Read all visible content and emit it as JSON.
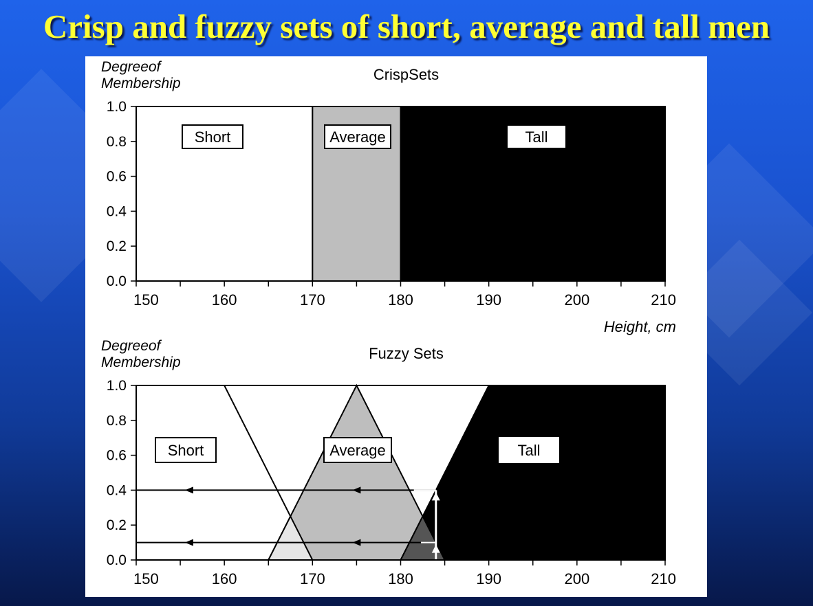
{
  "slide": {
    "title": "Crisp and fuzzy sets of short, average and tall men"
  },
  "colors": {
    "short": "#ffffff",
    "average": "#bebebe",
    "tall": "#000000",
    "overlap_short_average": "#e6e6e6",
    "overlap_average_tall": "#555555"
  },
  "chart_data": [
    {
      "type": "area",
      "title": "CrispSets",
      "ylabel": [
        "Degreeof",
        "Membership"
      ],
      "xlabel": "Height, cm",
      "xlim": [
        150,
        210
      ],
      "ylim": [
        0,
        1
      ],
      "x_ticks": [
        150,
        160,
        170,
        180,
        190,
        200,
        210
      ],
      "y_ticks": [
        "0.0",
        "0.2",
        "0.4",
        "0.6",
        "0.8",
        "1.0"
      ],
      "series": [
        {
          "name": "Short",
          "points": [
            [
              150,
              1
            ],
            [
              170,
              1
            ]
          ]
        },
        {
          "name": "Average",
          "points": [
            [
              170,
              1
            ],
            [
              180,
              1
            ]
          ]
        },
        {
          "name": "Tall",
          "points": [
            [
              180,
              1
            ],
            [
              210,
              1
            ]
          ]
        }
      ]
    },
    {
      "type": "area",
      "title": "Fuzzy Sets",
      "ylabel": [
        "Degreeof",
        "Membership"
      ],
      "xlabel": "",
      "xlim": [
        150,
        210
      ],
      "ylim": [
        0,
        1
      ],
      "x_ticks": [
        150,
        160,
        170,
        180,
        190,
        200,
        210
      ],
      "y_ticks": [
        "0.0",
        "0.2",
        "0.4",
        "0.6",
        "0.8",
        "1.0"
      ],
      "series": [
        {
          "name": "Short",
          "points": [
            [
              150,
              1
            ],
            [
              160,
              1
            ],
            [
              170,
              0
            ]
          ]
        },
        {
          "name": "Average",
          "points": [
            [
              165,
              0
            ],
            [
              175,
              1
            ],
            [
              185,
              0
            ]
          ]
        },
        {
          "name": "Tall",
          "points": [
            [
              180,
              0
            ],
            [
              190,
              1
            ],
            [
              210,
              1
            ]
          ]
        }
      ],
      "annotations": {
        "sample_height": 184,
        "memberships": [
          0.4,
          0.1
        ]
      }
    }
  ]
}
